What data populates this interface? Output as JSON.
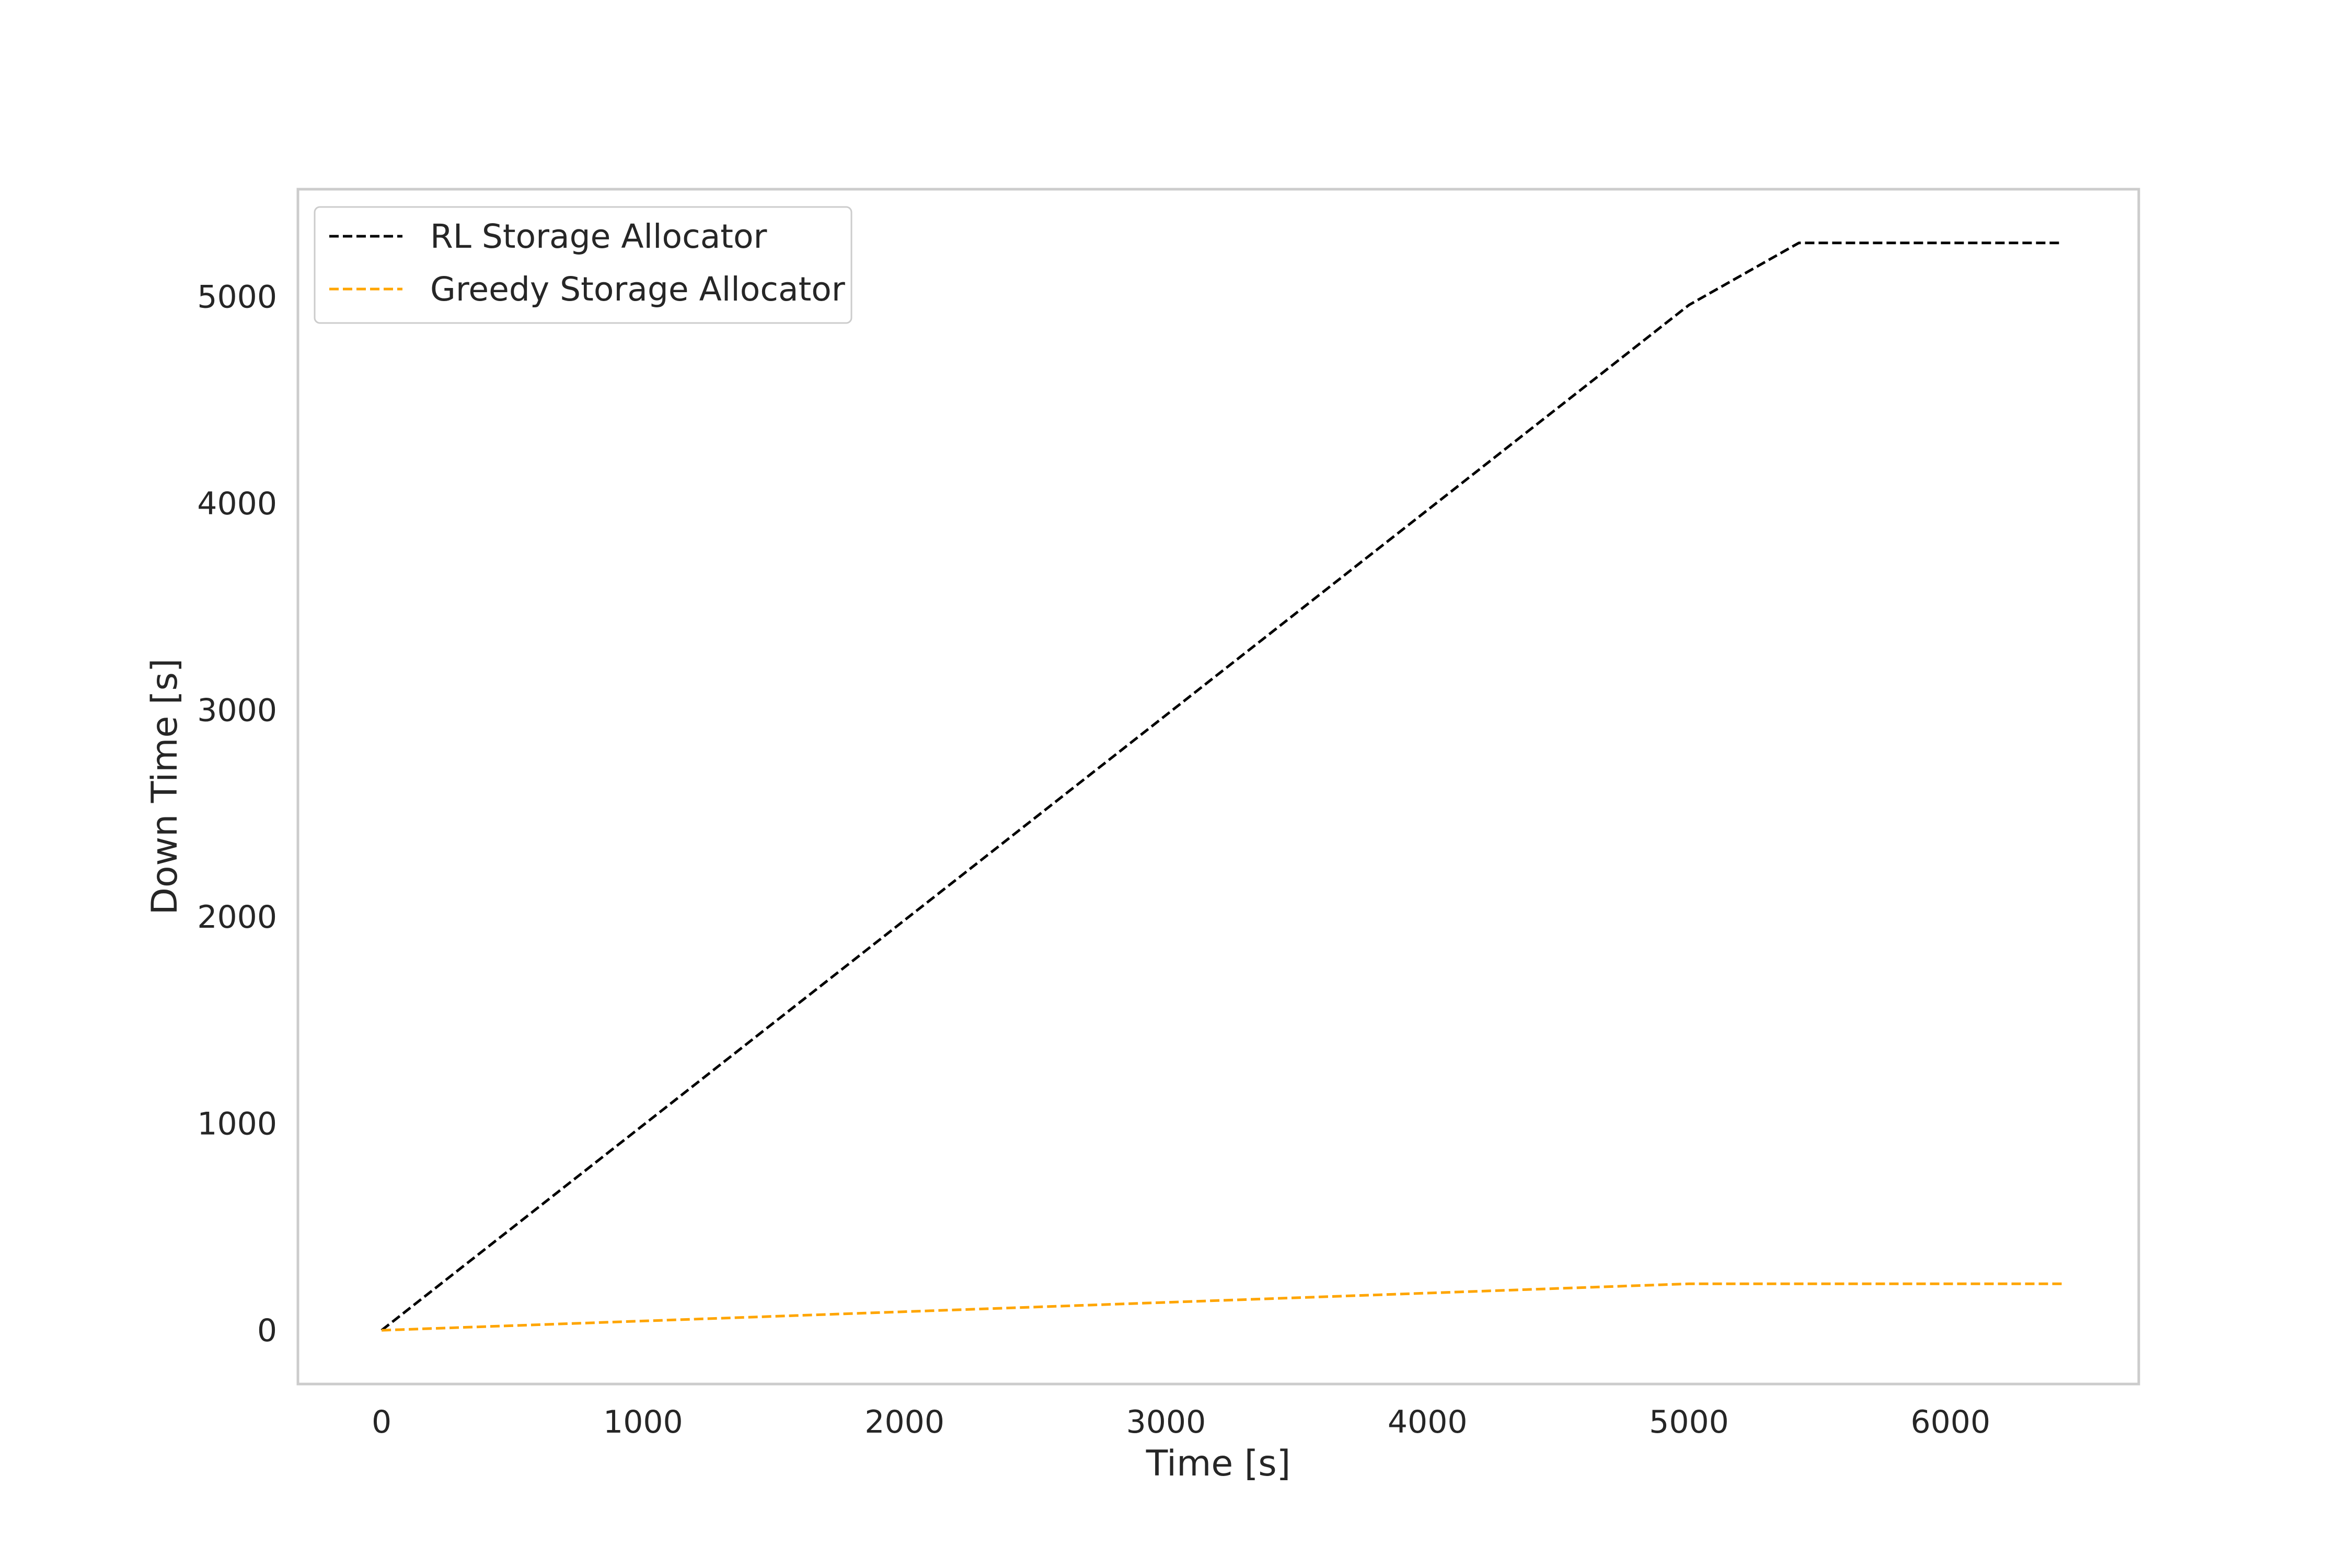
{
  "chart_data": {
    "type": "line",
    "title": "",
    "xlabel": "Time [s]",
    "ylabel": "Down Time [s]",
    "xlim": [
      -320,
      6720
    ],
    "ylim": [
      -260,
      5520
    ],
    "xticks": [
      0,
      1000,
      2000,
      3000,
      4000,
      5000,
      6000
    ],
    "yticks": [
      0,
      1000,
      2000,
      3000,
      4000,
      5000
    ],
    "xtick_labels": [
      "0",
      "1000",
      "2000",
      "3000",
      "4000",
      "5000",
      "6000"
    ],
    "ytick_labels": [
      "0",
      "1000",
      "2000",
      "3000",
      "4000",
      "5000"
    ],
    "grid": false,
    "legend_position": "top-left",
    "series": [
      {
        "name": "RL Storage Allocator",
        "color": "#000000",
        "line_style": "dashed",
        "x": [
          0,
          5000,
          5420,
          6430
        ],
        "y": [
          0,
          4960,
          5260,
          5260
        ]
      },
      {
        "name": "Greedy Storage Allocator",
        "color": "#ffa500",
        "line_style": "dashed",
        "x": [
          0,
          1000,
          2000,
          3000,
          4000,
          5000,
          5420,
          6430
        ],
        "y": [
          0,
          45,
          90,
          135,
          180,
          225,
          225,
          225
        ]
      }
    ]
  }
}
